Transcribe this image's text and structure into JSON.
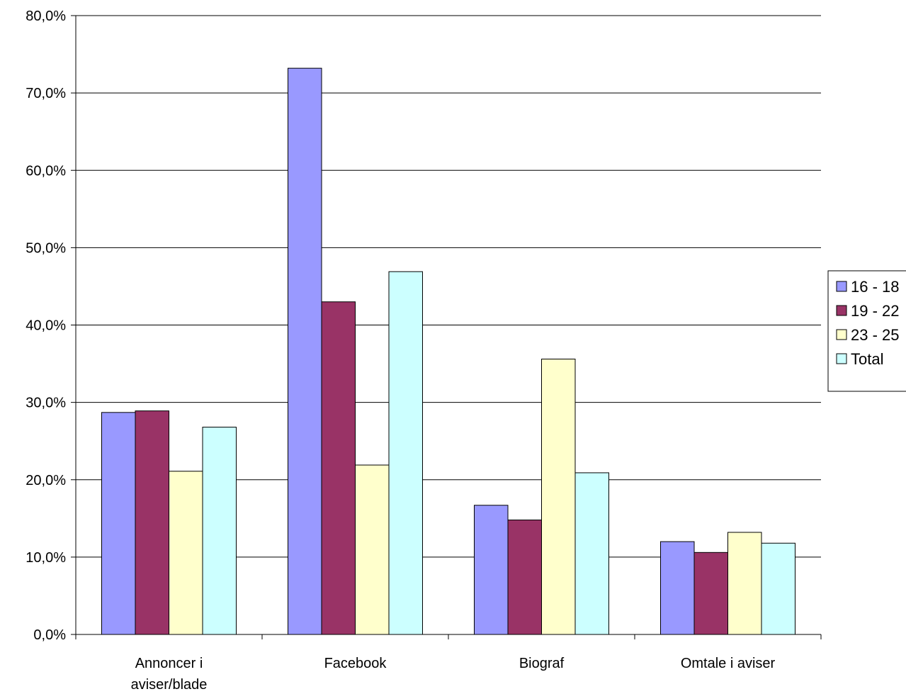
{
  "chart_data": {
    "type": "bar",
    "title": "",
    "xlabel": "",
    "ylabel": "",
    "ylim": [
      0,
      80
    ],
    "yticks": [
      0,
      10,
      20,
      30,
      40,
      50,
      60,
      70,
      80
    ],
    "ytick_labels": [
      "0,0%",
      "10,0%",
      "20,0%",
      "30,0%",
      "40,0%",
      "50,0%",
      "60,0%",
      "70,0%",
      "80,0%"
    ],
    "grid": true,
    "legend_position": "right",
    "categories": [
      [
        "Annoncer i",
        "aviser/blade"
      ],
      [
        "Facebook"
      ],
      [
        "Biograf"
      ],
      [
        "Omtale i aviser"
      ]
    ],
    "series": [
      {
        "name": "16 - 18",
        "color": "#9999FF",
        "values": [
          28.7,
          73.2,
          16.7,
          12.0
        ]
      },
      {
        "name": "19 - 22",
        "color": "#993366",
        "values": [
          28.9,
          43.0,
          14.8,
          10.6
        ]
      },
      {
        "name": "23 - 25",
        "color": "#FFFFCC",
        "values": [
          21.1,
          21.9,
          35.6,
          13.2
        ]
      },
      {
        "name": "Total",
        "color": "#CCFFFF",
        "values": [
          26.8,
          46.9,
          20.9,
          11.8
        ]
      }
    ]
  }
}
